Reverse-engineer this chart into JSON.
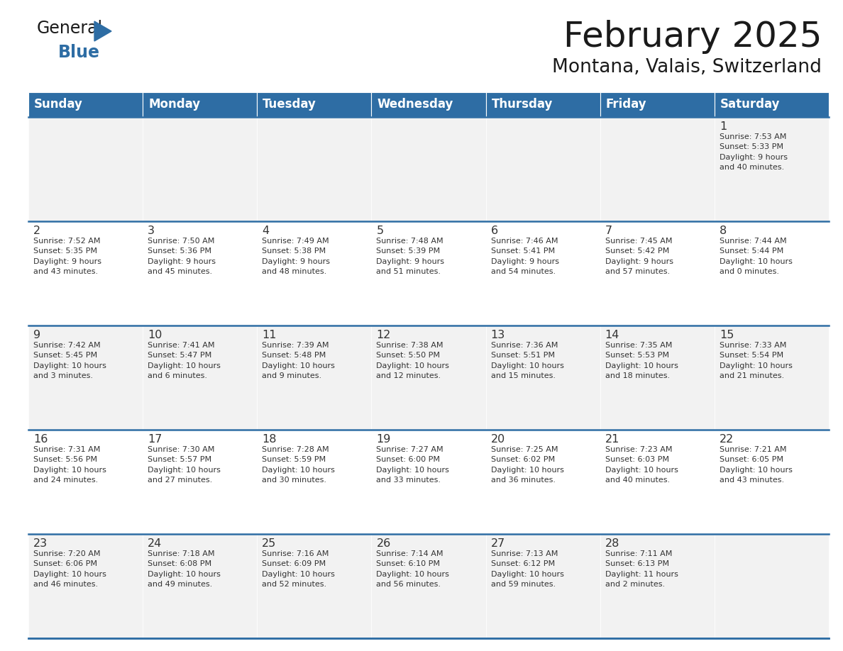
{
  "title": "February 2025",
  "subtitle": "Montana, Valais, Switzerland",
  "header_bg": "#2E6DA4",
  "header_text_color": "#FFFFFF",
  "cell_bg_row0": "#F2F2F2",
  "cell_bg_row1": "#FFFFFF",
  "cell_bg_row2": "#F2F2F2",
  "cell_bg_row3": "#FFFFFF",
  "cell_bg_row4": "#F2F2F2",
  "border_color": "#2E6DA4",
  "text_color": "#333333",
  "days_of_week": [
    "Sunday",
    "Monday",
    "Tuesday",
    "Wednesday",
    "Thursday",
    "Friday",
    "Saturday"
  ],
  "weeks": [
    [
      {
        "day": "",
        "info": ""
      },
      {
        "day": "",
        "info": ""
      },
      {
        "day": "",
        "info": ""
      },
      {
        "day": "",
        "info": ""
      },
      {
        "day": "",
        "info": ""
      },
      {
        "day": "",
        "info": ""
      },
      {
        "day": "1",
        "info": "Sunrise: 7:53 AM\nSunset: 5:33 PM\nDaylight: 9 hours\nand 40 minutes."
      }
    ],
    [
      {
        "day": "2",
        "info": "Sunrise: 7:52 AM\nSunset: 5:35 PM\nDaylight: 9 hours\nand 43 minutes."
      },
      {
        "day": "3",
        "info": "Sunrise: 7:50 AM\nSunset: 5:36 PM\nDaylight: 9 hours\nand 45 minutes."
      },
      {
        "day": "4",
        "info": "Sunrise: 7:49 AM\nSunset: 5:38 PM\nDaylight: 9 hours\nand 48 minutes."
      },
      {
        "day": "5",
        "info": "Sunrise: 7:48 AM\nSunset: 5:39 PM\nDaylight: 9 hours\nand 51 minutes."
      },
      {
        "day": "6",
        "info": "Sunrise: 7:46 AM\nSunset: 5:41 PM\nDaylight: 9 hours\nand 54 minutes."
      },
      {
        "day": "7",
        "info": "Sunrise: 7:45 AM\nSunset: 5:42 PM\nDaylight: 9 hours\nand 57 minutes."
      },
      {
        "day": "8",
        "info": "Sunrise: 7:44 AM\nSunset: 5:44 PM\nDaylight: 10 hours\nand 0 minutes."
      }
    ],
    [
      {
        "day": "9",
        "info": "Sunrise: 7:42 AM\nSunset: 5:45 PM\nDaylight: 10 hours\nand 3 minutes."
      },
      {
        "day": "10",
        "info": "Sunrise: 7:41 AM\nSunset: 5:47 PM\nDaylight: 10 hours\nand 6 minutes."
      },
      {
        "day": "11",
        "info": "Sunrise: 7:39 AM\nSunset: 5:48 PM\nDaylight: 10 hours\nand 9 minutes."
      },
      {
        "day": "12",
        "info": "Sunrise: 7:38 AM\nSunset: 5:50 PM\nDaylight: 10 hours\nand 12 minutes."
      },
      {
        "day": "13",
        "info": "Sunrise: 7:36 AM\nSunset: 5:51 PM\nDaylight: 10 hours\nand 15 minutes."
      },
      {
        "day": "14",
        "info": "Sunrise: 7:35 AM\nSunset: 5:53 PM\nDaylight: 10 hours\nand 18 minutes."
      },
      {
        "day": "15",
        "info": "Sunrise: 7:33 AM\nSunset: 5:54 PM\nDaylight: 10 hours\nand 21 minutes."
      }
    ],
    [
      {
        "day": "16",
        "info": "Sunrise: 7:31 AM\nSunset: 5:56 PM\nDaylight: 10 hours\nand 24 minutes."
      },
      {
        "day": "17",
        "info": "Sunrise: 7:30 AM\nSunset: 5:57 PM\nDaylight: 10 hours\nand 27 minutes."
      },
      {
        "day": "18",
        "info": "Sunrise: 7:28 AM\nSunset: 5:59 PM\nDaylight: 10 hours\nand 30 minutes."
      },
      {
        "day": "19",
        "info": "Sunrise: 7:27 AM\nSunset: 6:00 PM\nDaylight: 10 hours\nand 33 minutes."
      },
      {
        "day": "20",
        "info": "Sunrise: 7:25 AM\nSunset: 6:02 PM\nDaylight: 10 hours\nand 36 minutes."
      },
      {
        "day": "21",
        "info": "Sunrise: 7:23 AM\nSunset: 6:03 PM\nDaylight: 10 hours\nand 40 minutes."
      },
      {
        "day": "22",
        "info": "Sunrise: 7:21 AM\nSunset: 6:05 PM\nDaylight: 10 hours\nand 43 minutes."
      }
    ],
    [
      {
        "day": "23",
        "info": "Sunrise: 7:20 AM\nSunset: 6:06 PM\nDaylight: 10 hours\nand 46 minutes."
      },
      {
        "day": "24",
        "info": "Sunrise: 7:18 AM\nSunset: 6:08 PM\nDaylight: 10 hours\nand 49 minutes."
      },
      {
        "day": "25",
        "info": "Sunrise: 7:16 AM\nSunset: 6:09 PM\nDaylight: 10 hours\nand 52 minutes."
      },
      {
        "day": "26",
        "info": "Sunrise: 7:14 AM\nSunset: 6:10 PM\nDaylight: 10 hours\nand 56 minutes."
      },
      {
        "day": "27",
        "info": "Sunrise: 7:13 AM\nSunset: 6:12 PM\nDaylight: 10 hours\nand 59 minutes."
      },
      {
        "day": "28",
        "info": "Sunrise: 7:11 AM\nSunset: 6:13 PM\nDaylight: 11 hours\nand 2 minutes."
      },
      {
        "day": "",
        "info": ""
      }
    ]
  ],
  "figwidth": 11.88,
  "figheight": 9.18,
  "dpi": 100
}
